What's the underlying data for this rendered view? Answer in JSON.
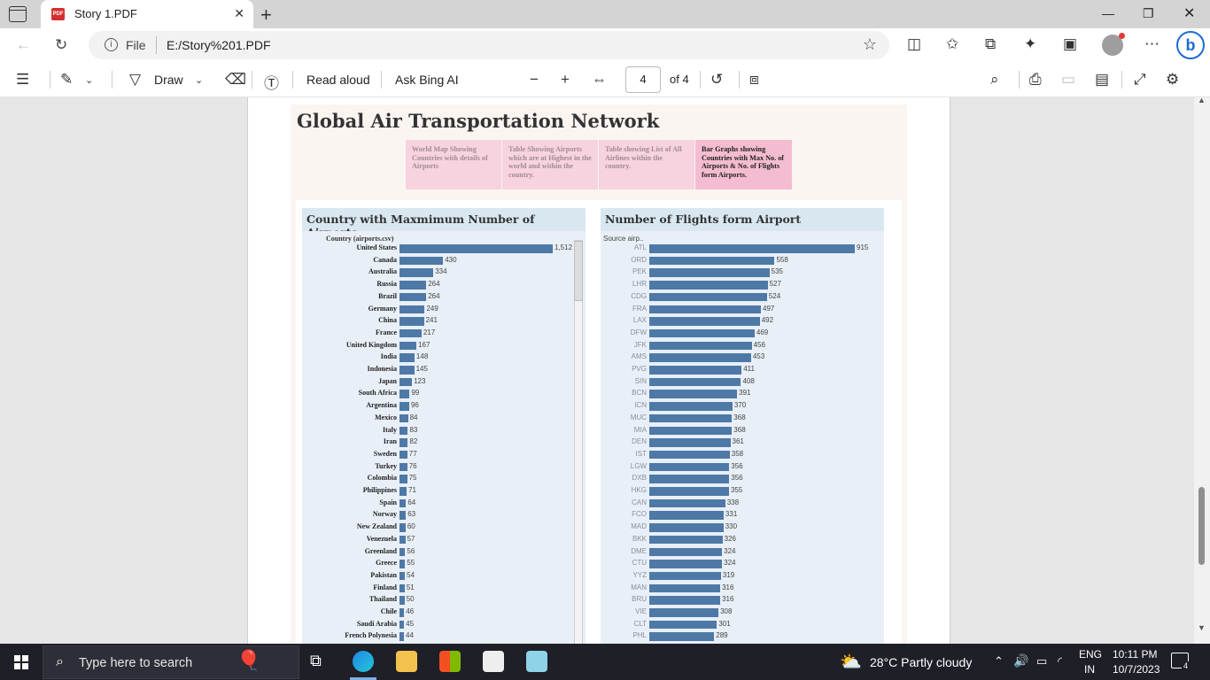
{
  "browser": {
    "tab_title": "Story 1.PDF",
    "pdf_badge": "PDF",
    "scheme": "File",
    "url": "E:/Story%201.PDF"
  },
  "pdf_toolbar": {
    "draw_label": "Draw",
    "read_aloud_label": "Read aloud",
    "ask_bing_label": "Ask Bing AI",
    "page_number": "4",
    "page_total": "of 4"
  },
  "dashboard": {
    "title": "Global Air Transportation Network",
    "story_tabs": [
      {
        "label": "World Map Showing Countries with details of Airports",
        "active": false
      },
      {
        "label": "Table Showing Airports which are at Highest in the world and within the country.",
        "active": false
      },
      {
        "label": "Table showing List of All Airlines within the country.",
        "active": false
      },
      {
        "label": "Bar Graphs showing Countries with Max No. of Airports & No. of Flights form Airports.",
        "active": true
      }
    ]
  },
  "chart_data": [
    {
      "type": "bar",
      "orientation": "horizontal",
      "title": "Country with Maxmimum Number of Airports",
      "row_header": "Country (airports.csv)",
      "categories": [
        "United States",
        "Canada",
        "Australia",
        "Russia",
        "Brazil",
        "Germany",
        "China",
        "France",
        "United Kingdom",
        "India",
        "Indonesia",
        "Japan",
        "South Africa",
        "Argentina",
        "Mexico",
        "Italy",
        "Iran",
        "Sweden",
        "Turkey",
        "Colombia",
        "Philippines",
        "Spain",
        "Norway",
        "New Zealand",
        "Venezuela",
        "Greenland",
        "Greece",
        "Pakistan",
        "Finland",
        "Thailand",
        "Chile",
        "Saudi Arabia",
        "French Polynesia"
      ],
      "values": [
        1512,
        430,
        334,
        264,
        264,
        249,
        241,
        217,
        167,
        148,
        145,
        123,
        99,
        96,
        84,
        83,
        82,
        77,
        76,
        75,
        71,
        64,
        63,
        60,
        57,
        56,
        55,
        54,
        51,
        50,
        46,
        45,
        44
      ],
      "value_labels": [
        "1,512",
        "430",
        "334",
        "264",
        "264",
        "249",
        "241",
        "217",
        "167",
        "148",
        "145",
        "123",
        "99",
        "96",
        "84",
        "83",
        "82",
        "77",
        "76",
        "75",
        "71",
        "64",
        "63",
        "60",
        "57",
        "56",
        "55",
        "54",
        "51",
        "50",
        "46",
        "45",
        "44"
      ],
      "color": "#4e79a7"
    },
    {
      "type": "bar",
      "orientation": "horizontal",
      "title": "Number of Flights form Airport",
      "row_header": "Source airp..",
      "categories": [
        "ATL",
        "ORD",
        "PEK",
        "LHR",
        "CDG",
        "FRA",
        "LAX",
        "DFW",
        "JFK",
        "AMS",
        "PVG",
        "SIN",
        "BCN",
        "ICN",
        "MUC",
        "MIA",
        "DEN",
        "IST",
        "LGW",
        "DXB",
        "HKG",
        "CAN",
        "FCO",
        "MAD",
        "BKK",
        "DME",
        "CTU",
        "YYZ",
        "MAN",
        "BRU",
        "VIE",
        "CLT",
        "PHL"
      ],
      "values": [
        915,
        558,
        535,
        527,
        524,
        497,
        492,
        469,
        456,
        453,
        411,
        408,
        391,
        370,
        368,
        368,
        361,
        358,
        356,
        356,
        355,
        338,
        331,
        330,
        326,
        324,
        324,
        319,
        316,
        316,
        308,
        301,
        289
      ],
      "value_labels": [
        "915",
        "558",
        "535",
        "527",
        "524",
        "497",
        "492",
        "469",
        "456",
        "453",
        "411",
        "408",
        "391",
        "370",
        "368",
        "368",
        "361",
        "358",
        "356",
        "356",
        "355",
        "338",
        "331",
        "330",
        "326",
        "324",
        "324",
        "319",
        "316",
        "316",
        "308",
        "301",
        "289"
      ],
      "color": "#4e79a7"
    }
  ],
  "taskbar": {
    "search_placeholder": "Type here to search",
    "weather": "28°C  Partly cloudy",
    "lang_top": "ENG",
    "lang_bottom": "IN",
    "time": "10:11 PM",
    "date": "10/7/2023",
    "notification_count": "4"
  }
}
